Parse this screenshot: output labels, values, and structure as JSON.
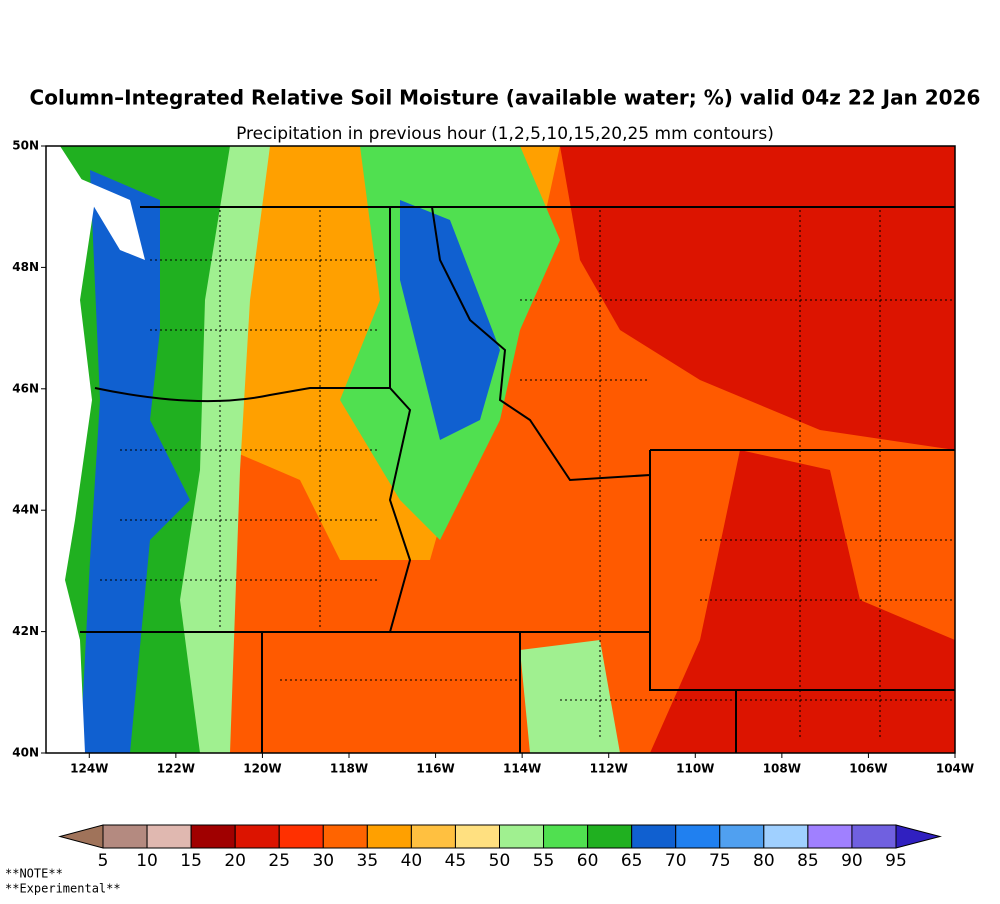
{
  "title": "Column–Integrated Relative Soil Moisture (available water; %) valid 04z 22 Jan 2026",
  "subtitle": "Precipitation in previous hour (1,2,5,10,15,20,25 mm contours)",
  "map": {
    "lon_range": [
      -125,
      -104
    ],
    "lat_range": [
      40,
      50
    ],
    "lat_ticks": [
      {
        "value": 40,
        "label": "40N"
      },
      {
        "value": 42,
        "label": "42N"
      },
      {
        "value": 44,
        "label": "44N"
      },
      {
        "value": 46,
        "label": "46N"
      },
      {
        "value": 48,
        "label": "48N"
      },
      {
        "value": 50,
        "label": "50N"
      }
    ],
    "lon_ticks": [
      {
        "value": -124,
        "label": "124W"
      },
      {
        "value": -122,
        "label": "122W"
      },
      {
        "value": -120,
        "label": "120W"
      },
      {
        "value": -118,
        "label": "118W"
      },
      {
        "value": -116,
        "label": "116W"
      },
      {
        "value": -114,
        "label": "114W"
      },
      {
        "value": -112,
        "label": "112W"
      },
      {
        "value": -110,
        "label": "110W"
      },
      {
        "value": -108,
        "label": "108W"
      },
      {
        "value": -106,
        "label": "106W"
      },
      {
        "value": -104,
        "label": "104W"
      }
    ]
  },
  "colorbar": {
    "levels": [
      5,
      10,
      15,
      20,
      25,
      30,
      35,
      40,
      45,
      50,
      55,
      60,
      65,
      70,
      75,
      80,
      85,
      90,
      95
    ],
    "colors": [
      "#a0735a",
      "#b48a80",
      "#e0b8b0",
      "#a00000",
      "#dc1400",
      "#ff3000",
      "#ff6400",
      "#ffa000",
      "#ffc040",
      "#ffe080",
      "#a0f090",
      "#50e050",
      "#20b020",
      "#1060d0",
      "#2080f0",
      "#50a0f0",
      "#a0d0ff",
      "#a080ff",
      "#7060e0",
      "#3020c0"
    ]
  },
  "notes": [
    "**NOTE**",
    "**Experimental**"
  ]
}
